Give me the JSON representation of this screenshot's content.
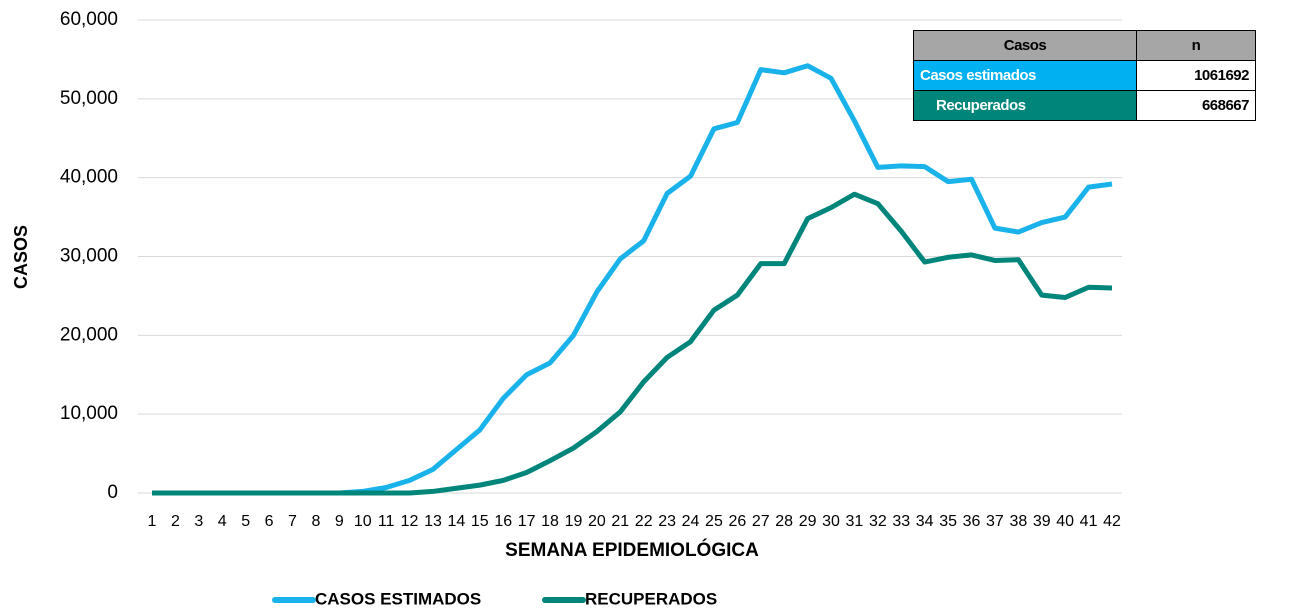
{
  "chart_data": {
    "type": "line",
    "y_label": "CASOS",
    "x_label": "SEMANA EPIDEMIOLÓGICA",
    "categories": [
      "1",
      "2",
      "3",
      "4",
      "5",
      "6",
      "7",
      "8",
      "9",
      "10",
      "11",
      "12",
      "13",
      "14",
      "15",
      "16",
      "17",
      "18",
      "19",
      "20",
      "21",
      "22",
      "23",
      "24",
      "25",
      "26",
      "27",
      "28",
      "29",
      "30",
      "31",
      "32",
      "33",
      "34",
      "35",
      "36",
      "37",
      "38",
      "39",
      "40",
      "41",
      "42"
    ],
    "series": [
      {
        "name": "CASOS ESTIMADOS",
        "color": "#1ab2ea",
        "values": [
          0,
          0,
          0,
          0,
          0,
          0,
          0,
          0,
          0,
          200,
          700,
          1600,
          3000,
          5500,
          8000,
          12000,
          15000,
          16500,
          20000,
          25500,
          29700,
          32000,
          38000,
          40200,
          46200,
          47000,
          53700,
          53300,
          54200,
          52600,
          47200,
          41300,
          41500,
          41400,
          39500,
          39800,
          33600,
          33100,
          34300,
          35000,
          38800,
          39200
        ]
      },
      {
        "name": "RECUPERADOS",
        "color": "#00857a",
        "values": [
          0,
          0,
          0,
          0,
          0,
          0,
          0,
          0,
          0,
          0,
          0,
          0,
          200,
          600,
          1000,
          1600,
          2600,
          4100,
          5700,
          7800,
          10300,
          14100,
          17200,
          19200,
          23200,
          25100,
          29100,
          29100,
          34800,
          36200,
          37900,
          36700,
          33200,
          29300,
          29900,
          30200,
          29500,
          29600,
          25100,
          24800,
          26100,
          26000
        ]
      }
    ],
    "ylim": [
      0,
      60000
    ],
    "yticks": [
      0,
      {
        "value": 10000,
        "label": "10,000"
      },
      {
        "value": 20000,
        "label": "20,000"
      },
      {
        "value": 30000,
        "label": "30,000"
      },
      {
        "value": 40000,
        "label": "40,000"
      },
      {
        "value": 50000,
        "label": "50,000"
      },
      {
        "value": 60000,
        "label": "60,000"
      }
    ],
    "grid": true,
    "legend": "bottom"
  },
  "table": {
    "header": [
      "Casos",
      "n"
    ],
    "rows": [
      [
        "Casos estimados",
        1061692
      ],
      [
        "Recuperados",
        668667
      ]
    ]
  }
}
